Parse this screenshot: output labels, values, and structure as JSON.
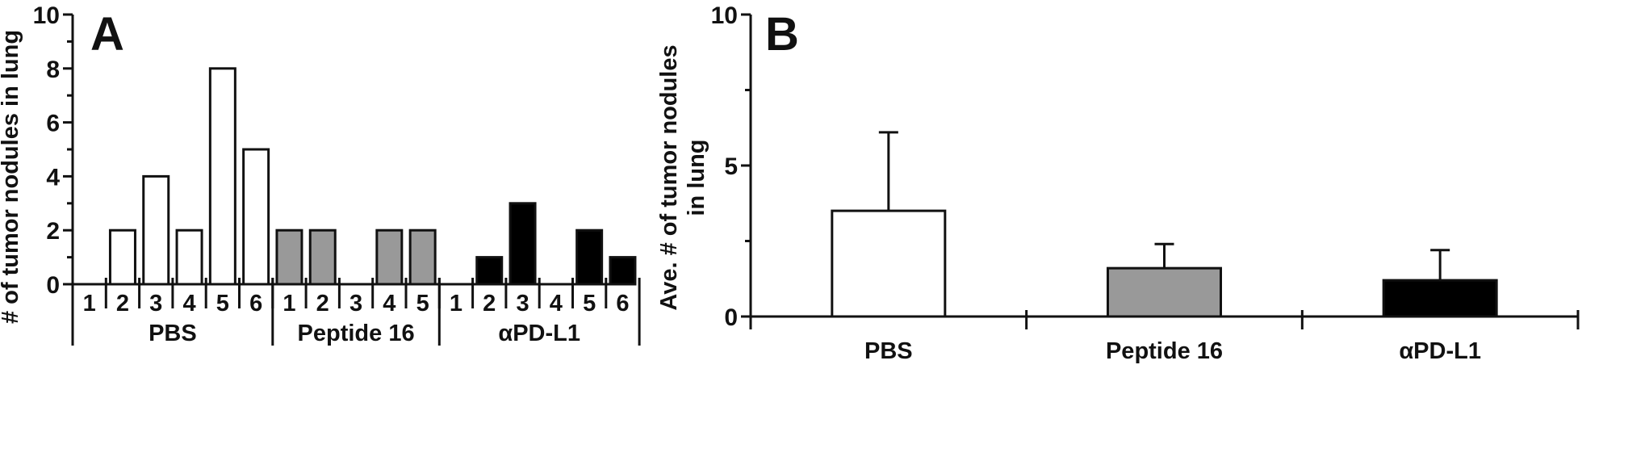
{
  "chart_data": [
    {
      "panel": "A",
      "type": "bar",
      "ylabel": "# of tumor nodules in lung",
      "ylim": [
        0,
        10
      ],
      "yticks": [
        0,
        2,
        4,
        6,
        8,
        10
      ],
      "groups": [
        {
          "name": "PBS",
          "color": "#ffffff",
          "mice": [
            "1",
            "2",
            "3",
            "4",
            "5",
            "6"
          ],
          "values": [
            0,
            2,
            4,
            2,
            8,
            5
          ]
        },
        {
          "name": "Peptide 16",
          "color": "#999999",
          "mice": [
            "1",
            "2",
            "3",
            "4",
            "5"
          ],
          "values": [
            2,
            2,
            0,
            2,
            2
          ]
        },
        {
          "name": "αPD-L1",
          "color": "#000000",
          "mice": [
            "1",
            "2",
            "3",
            "4",
            "5",
            "6"
          ],
          "values": [
            0,
            1,
            3,
            0,
            2,
            1
          ]
        }
      ]
    },
    {
      "panel": "B",
      "type": "bar",
      "ylabel_lines": [
        "Ave. # of tumor nodules",
        "in lung"
      ],
      "ylim": [
        0,
        10
      ],
      "yticks": [
        0,
        5,
        10
      ],
      "categories": [
        "PBS",
        "Peptide 16",
        "αPD-L1"
      ],
      "values": [
        3.5,
        1.6,
        1.2
      ],
      "errors": [
        2.6,
        0.8,
        1.0
      ],
      "colors": [
        "#ffffff",
        "#999999",
        "#000000"
      ]
    }
  ]
}
